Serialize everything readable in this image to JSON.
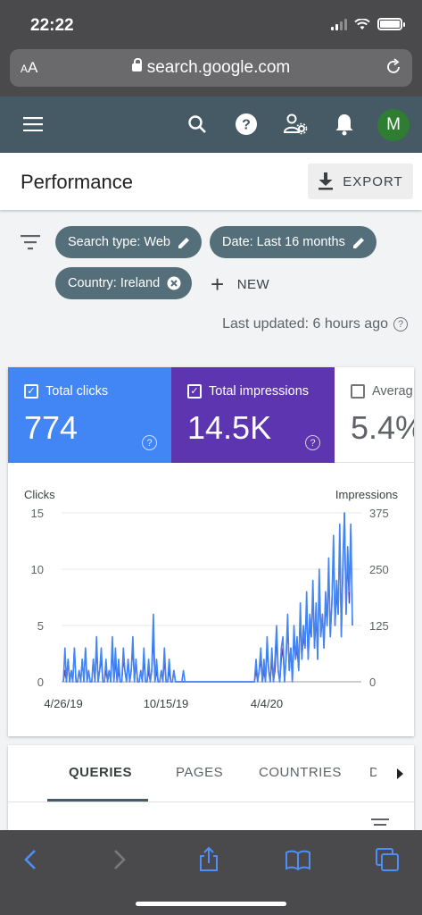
{
  "status_bar": {
    "time": "22:22"
  },
  "browser": {
    "aa_label": "AA",
    "url": "search.google.com"
  },
  "header": {
    "avatar_letter": "M"
  },
  "page": {
    "title": "Performance",
    "export_label": "EXPORT"
  },
  "filters": {
    "chips": [
      {
        "label": "Search type: Web",
        "action": "edit"
      },
      {
        "label": "Date: Last 16 months",
        "action": "edit"
      },
      {
        "label": "Country: Ireland",
        "action": "remove"
      }
    ],
    "new_label": "NEW",
    "last_updated": "Last updated: 6 hours ago"
  },
  "metrics": [
    {
      "label": "Total clicks",
      "value": "774",
      "checked": true,
      "color": "#4285f4"
    },
    {
      "label": "Total impressions",
      "value": "14.5K",
      "checked": true,
      "color": "#5e35b1"
    },
    {
      "label": "Averag",
      "value": "5.4%",
      "checked": false
    }
  ],
  "chart_data": {
    "type": "line",
    "left_axis_label": "Clicks",
    "right_axis_label": "Impressions",
    "y_left": {
      "min": 0,
      "max": 15,
      "ticks": [
        0,
        5,
        10,
        15
      ]
    },
    "y_right": {
      "min": 0,
      "max": 375,
      "ticks": [
        0,
        125,
        250,
        375
      ]
    },
    "x_tick_labels": [
      "4/26/19",
      "10/15/19",
      "4/4/20"
    ],
    "series": [
      {
        "name": "Clicks",
        "axis": "left",
        "color": "#4285f4",
        "values": [
          0,
          3,
          0,
          2,
          0,
          1,
          0,
          3,
          0,
          0,
          1,
          0,
          2,
          0,
          3,
          0,
          1,
          0,
          0,
          2,
          0,
          4,
          0,
          1,
          3,
          0,
          0,
          2,
          0,
          1,
          0,
          4,
          0,
          3,
          0,
          2,
          0,
          0,
          3,
          1,
          0,
          2,
          0,
          1,
          4,
          0,
          2,
          0,
          0,
          1,
          0,
          3,
          0,
          0,
          2,
          0,
          1,
          6,
          0,
          2,
          0,
          0,
          1,
          0,
          3,
          0,
          0,
          2,
          0,
          0,
          1,
          0,
          0,
          0,
          0,
          0,
          1,
          0,
          0,
          0,
          0,
          0,
          0,
          0,
          0,
          0,
          0,
          0,
          0,
          0,
          0,
          0,
          0,
          0,
          0,
          0,
          0,
          0,
          0,
          0,
          0,
          0,
          0,
          0,
          0,
          0,
          0,
          0,
          0,
          0,
          0,
          0,
          0,
          0,
          0,
          0,
          0,
          0,
          0,
          0,
          0,
          0,
          2,
          0,
          1,
          3,
          0,
          2,
          0,
          4,
          1,
          0,
          3,
          0,
          2,
          5,
          1,
          0,
          3,
          4,
          0,
          2,
          6,
          1,
          3,
          0,
          5,
          2,
          4,
          1,
          7,
          2,
          5,
          3,
          8,
          2,
          6,
          4,
          9,
          3,
          7,
          2,
          10,
          4,
          6,
          3,
          8,
          5,
          11,
          4,
          7,
          13,
          5,
          9,
          6,
          14,
          4,
          11,
          15,
          6,
          12,
          8,
          14,
          5
        ]
      },
      {
        "name": "Impressions",
        "axis": "right",
        "color": "#5e35b1",
        "values": [
          0,
          25,
          0,
          50,
          0,
          25,
          0,
          75,
          0,
          0,
          25,
          0,
          50,
          0,
          75,
          0,
          25,
          0,
          0,
          50,
          0,
          75,
          0,
          25,
          50,
          0,
          0,
          25,
          0,
          25,
          0,
          75,
          0,
          50,
          0,
          25,
          0,
          0,
          50,
          25,
          0,
          50,
          0,
          25,
          75,
          0,
          50,
          0,
          0,
          25,
          0,
          50,
          0,
          0,
          25,
          0,
          25,
          100,
          0,
          25,
          0,
          0,
          25,
          0,
          50,
          0,
          0,
          25,
          0,
          0,
          25,
          0,
          0,
          0,
          0,
          0,
          0,
          0,
          0,
          0,
          0,
          0,
          0,
          0,
          0,
          0,
          0,
          0,
          0,
          0,
          0,
          0,
          0,
          0,
          0,
          0,
          0,
          0,
          0,
          0,
          0,
          0,
          0,
          0,
          0,
          0,
          0,
          0,
          0,
          0,
          0,
          0,
          0,
          0,
          0,
          0,
          0,
          0,
          0,
          0,
          0,
          0,
          25,
          0,
          25,
          50,
          0,
          25,
          0,
          75,
          25,
          0,
          50,
          0,
          25,
          100,
          25,
          0,
          50,
          75,
          0,
          50,
          125,
          25,
          75,
          0,
          100,
          50,
          75,
          25,
          150,
          50,
          100,
          75,
          175,
          50,
          125,
          100,
          200,
          75,
          150,
          50,
          225,
          100,
          150,
          75,
          175,
          125,
          250,
          100,
          175,
          300,
          125,
          200,
          150,
          325,
          100,
          250,
          375,
          150,
          275,
          175,
          350,
          125
        ]
      }
    ]
  },
  "tabs": [
    {
      "label": "QUERIES",
      "active": true
    },
    {
      "label": "PAGES",
      "active": false
    },
    {
      "label": "COUNTRIES",
      "active": false
    },
    {
      "label": "D",
      "active": false
    }
  ]
}
